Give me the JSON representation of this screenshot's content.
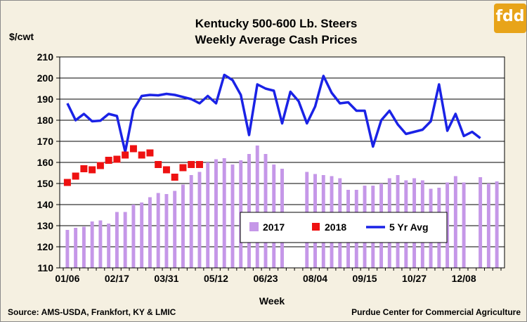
{
  "logo": {
    "text": "fdd"
  },
  "source": "Source:  AMS-USDA, Frankfort, KY & LMIC",
  "credit": "Purdue Center for Commercial Agriculture",
  "chart_data": {
    "type": "bar",
    "title": "Kentucky 500-600 Lb. Steers",
    "subtitle": "Weekly Average Cash Prices",
    "ylabel": "$/cwt",
    "xlabel": "Week",
    "ylim": [
      110,
      210
    ],
    "yticks": [
      110,
      120,
      130,
      140,
      150,
      160,
      170,
      180,
      190,
      200,
      210
    ],
    "weeks": 53,
    "xtick_labels": [
      {
        "week": 1,
        "label": "01/06"
      },
      {
        "week": 7,
        "label": "02/17"
      },
      {
        "week": 13,
        "label": "03/31"
      },
      {
        "week": 19,
        "label": "05/12"
      },
      {
        "week": 25,
        "label": "06/23"
      },
      {
        "week": 31,
        "label": "08/04"
      },
      {
        "week": 37,
        "label": "09/15"
      },
      {
        "week": 43,
        "label": "10/27"
      },
      {
        "week": 49,
        "label": "12/08"
      }
    ],
    "grid": true,
    "legend": {
      "position": "bottom-center"
    },
    "colors": {
      "s2017": "#c597e8",
      "s2018": "#ee1111",
      "s5yr": "#1a22e6"
    },
    "series": [
      {
        "name": "2017",
        "kind": "bar",
        "values": [
          128,
          129,
          129.5,
          132,
          132.5,
          131,
          136.5,
          136.5,
          140,
          141,
          143.5,
          145.5,
          145,
          146.5,
          149.5,
          154,
          155.5,
          160,
          161.5,
          162,
          159,
          161,
          164,
          168,
          164,
          159,
          157,
          null,
          null,
          155.5,
          154.5,
          154,
          153.5,
          152.5,
          147,
          147,
          149,
          149,
          150,
          152.5,
          154,
          151.5,
          152.5,
          151.5,
          147.5,
          148,
          150.5,
          153.5,
          150.5,
          null,
          153,
          150,
          151
        ]
      },
      {
        "name": "2018",
        "kind": "marker",
        "values": [
          150.5,
          153.5,
          157,
          156.5,
          158.5,
          161,
          161.5,
          163.5,
          166.5,
          163.5,
          164.5,
          159,
          156.5,
          153,
          157.5,
          159,
          159
        ]
      },
      {
        "name": "5 Yr Avg",
        "kind": "line",
        "values": [
          188,
          180,
          183,
          179.5,
          179.8,
          183,
          182,
          165,
          185,
          191.5,
          192,
          191.8,
          192.5,
          192,
          191,
          190,
          188,
          191.5,
          188,
          201.5,
          199,
          192,
          173,
          197,
          195,
          194,
          178.5,
          193.5,
          189,
          178.5,
          186.5,
          201,
          193,
          188,
          188.5,
          184.5,
          184.5,
          167.5,
          180,
          184.5,
          178,
          173.5,
          174.5,
          175.5,
          179.5,
          197,
          175,
          183,
          172.5,
          174.5,
          171.5
        ]
      }
    ]
  }
}
